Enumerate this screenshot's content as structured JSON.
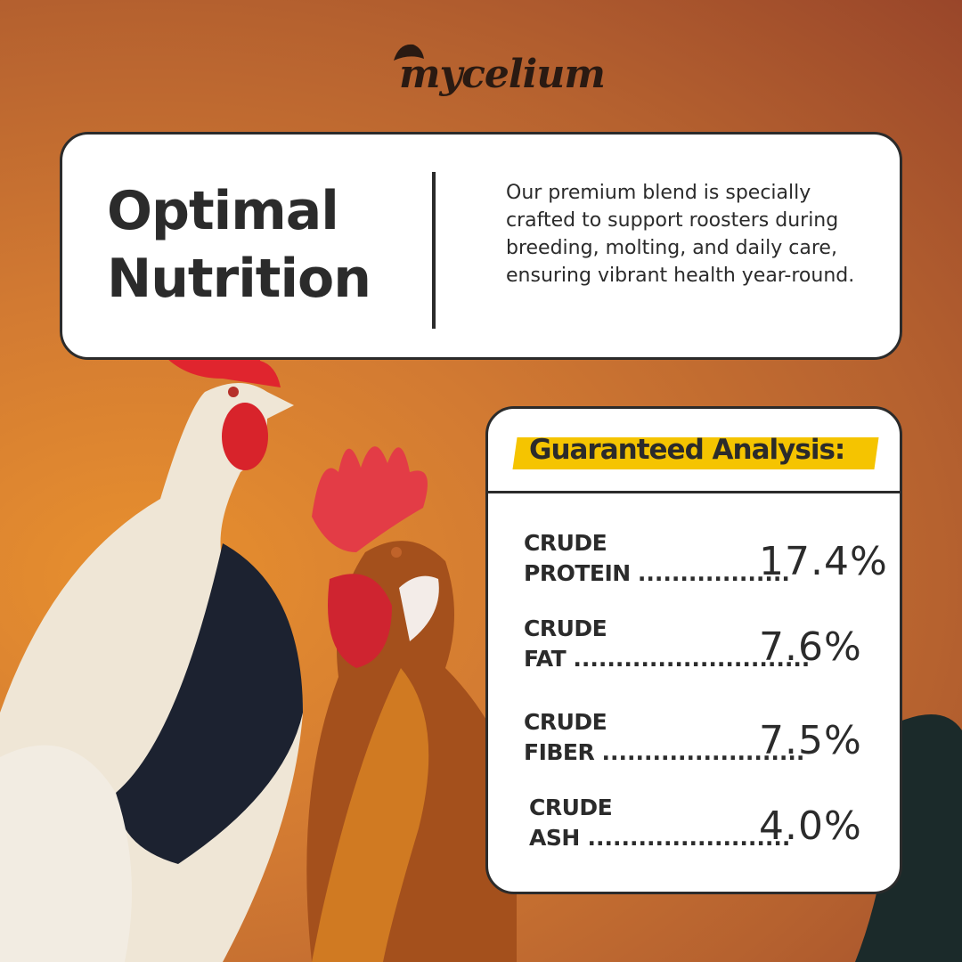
{
  "brand": {
    "logo": "mycelium"
  },
  "intro": {
    "title_line1": "Optimal",
    "title_line2": "Nutrition",
    "body": "Our premium blend is specially crafted to support roosters during breeding, molting, and daily care, ensuring vibrant health year-round."
  },
  "analysis": {
    "heading": "Guaranteed Analysis:",
    "highlight_color": "#f5c400",
    "rows": [
      {
        "line1": "CRUDE",
        "line2": "PROTEIN",
        "dots": "..................",
        "value": "17.4%"
      },
      {
        "line1": "CRUDE",
        "line2": "FAT",
        "dots": "............................",
        "value": "7.6%"
      },
      {
        "line1": "CRUDE",
        "line2": "FIBER",
        "dots": "........................",
        "value": "7.5%"
      },
      {
        "line1": "CRUDE",
        "line2": "ASH",
        "dots": " ........................",
        "value": "4.0%"
      }
    ]
  }
}
